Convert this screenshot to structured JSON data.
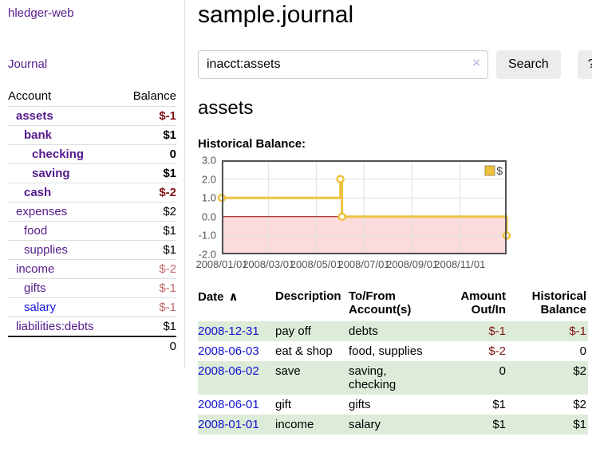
{
  "sidebar": {
    "brand": "hledger-web",
    "nav": {
      "journal_label": "Journal"
    },
    "accounts_table": {
      "headers": {
        "account": "Account",
        "balance": "Balance"
      },
      "rows": [
        {
          "account": "assets",
          "indent": 1,
          "bold": true,
          "balance": "$-1",
          "balance_style": "negative-strong"
        },
        {
          "account": "bank",
          "indent": 2,
          "bold": true,
          "balance": "$1",
          "balance_style": "normal-strong"
        },
        {
          "account": "checking",
          "indent": 3,
          "bold": true,
          "balance": "0",
          "balance_style": "normal-strong"
        },
        {
          "account": "saving",
          "indent": 3,
          "bold": true,
          "balance": "$1",
          "balance_style": "normal-strong"
        },
        {
          "account": "cash",
          "indent": 2,
          "bold": true,
          "balance": "$-2",
          "balance_style": "negative-strong"
        },
        {
          "account": "expenses",
          "indent": 1,
          "bold": false,
          "balance": "$2",
          "balance_style": "normal"
        },
        {
          "account": "food",
          "indent": 2,
          "bold": false,
          "balance": "$1",
          "balance_style": "normal"
        },
        {
          "account": "supplies",
          "indent": 2,
          "bold": false,
          "balance": "$1",
          "balance_style": "normal"
        },
        {
          "account": "income",
          "indent": 1,
          "bold": false,
          "balance": "$-2",
          "balance_style": "negative-soft"
        },
        {
          "account": "gifts",
          "indent": 2,
          "bold": false,
          "balance": "$-1",
          "balance_style": "negative-soft"
        },
        {
          "account": "salary",
          "indent": 2,
          "bold": false,
          "link_style": "blue",
          "balance": "$-1",
          "balance_style": "negative-soft"
        },
        {
          "account": "liabilities:debts",
          "indent": 1,
          "bold": false,
          "balance": "$1",
          "balance_style": "normal"
        }
      ],
      "total": "0"
    }
  },
  "header": {
    "title": "sample.journal"
  },
  "search": {
    "value": "inacct:assets",
    "clear_icon": "×",
    "search_label": "Search",
    "help_label": "?"
  },
  "account_page": {
    "title": "assets",
    "chart_label": "Historical Balance:"
  },
  "chart_data": {
    "type": "line",
    "title": "Historical Balance",
    "series": [
      {
        "name": "$",
        "color": "#edc240",
        "style": "step",
        "data": [
          [
            "2008/01/01",
            1
          ],
          [
            "2008/06/01",
            2
          ],
          [
            "2008/06/02",
            2
          ],
          [
            "2008/06/03",
            0
          ],
          [
            "2008/12/31",
            -1
          ]
        ],
        "points": [
          [
            0,
            1
          ],
          [
            152,
            1
          ],
          [
            152,
            2
          ],
          [
            154,
            2
          ],
          [
            154,
            0
          ],
          [
            365,
            0
          ],
          [
            365,
            -1
          ]
        ],
        "markers": [
          [
            0,
            1
          ],
          [
            152,
            2
          ],
          [
            154,
            0
          ],
          [
            365,
            -1
          ]
        ]
      }
    ],
    "x_ticks": [
      {
        "pos": 0,
        "label": "2008/01/01"
      },
      {
        "pos": 60,
        "label": "2008/03/01"
      },
      {
        "pos": 121,
        "label": "2008/05/01"
      },
      {
        "pos": 182,
        "label": "2008/07/01"
      },
      {
        "pos": 244,
        "label": "2008/09/01"
      },
      {
        "pos": 305,
        "label": "2008/11/01"
      }
    ],
    "y_ticks": [
      3.0,
      2.0,
      1.0,
      0.0,
      -1.0,
      -2.0
    ],
    "xlim": [
      0,
      365
    ],
    "ylim": [
      -2,
      3
    ],
    "grid": true,
    "legend": {
      "label": "$",
      "position": "top-right"
    },
    "colors": {
      "negative_region_fill": "#fbdbdb",
      "zero_line": "#990000",
      "grid_line": "#e0e0e0",
      "border": "#545454"
    }
  },
  "register_table": {
    "headers": {
      "date": "Date",
      "sort_icon": "∧",
      "description": "Description",
      "accounts": "To/From Account(s)",
      "amount": "Amount Out/In",
      "balance": "Historical Balance"
    },
    "rows": [
      {
        "date": "2008-12-31",
        "description": "pay off",
        "accounts": "debts",
        "amount": "$-1",
        "amount_negative": true,
        "balance": "$-1",
        "balance_negative": true,
        "shaded": true
      },
      {
        "date": "2008-06-03",
        "description": "eat & shop",
        "accounts": "food, supplies",
        "amount": "$-2",
        "amount_negative": true,
        "balance": "0",
        "balance_negative": false,
        "shaded": false
      },
      {
        "date": "2008-06-02",
        "description": "save",
        "accounts": "saving, checking",
        "amount": "0",
        "amount_negative": false,
        "balance": "$2",
        "balance_negative": false,
        "shaded": true
      },
      {
        "date": "2008-06-01",
        "description": "gift",
        "accounts": "gifts",
        "amount": "$1",
        "amount_negative": false,
        "balance": "$2",
        "balance_negative": false,
        "shaded": false
      },
      {
        "date": "2008-01-01",
        "description": "income",
        "accounts": "salary",
        "amount": "$1",
        "amount_negative": false,
        "balance": "$1",
        "balance_negative": false,
        "shaded": true
      }
    ]
  },
  "colors": {
    "link_purple": "#551a8b",
    "link_blue": "#1414dd",
    "negative_strong": "#801515",
    "negative_soft": "#c36a6a",
    "row_stripe_green": "#ddecd9",
    "chart_gold": "#edc240"
  }
}
